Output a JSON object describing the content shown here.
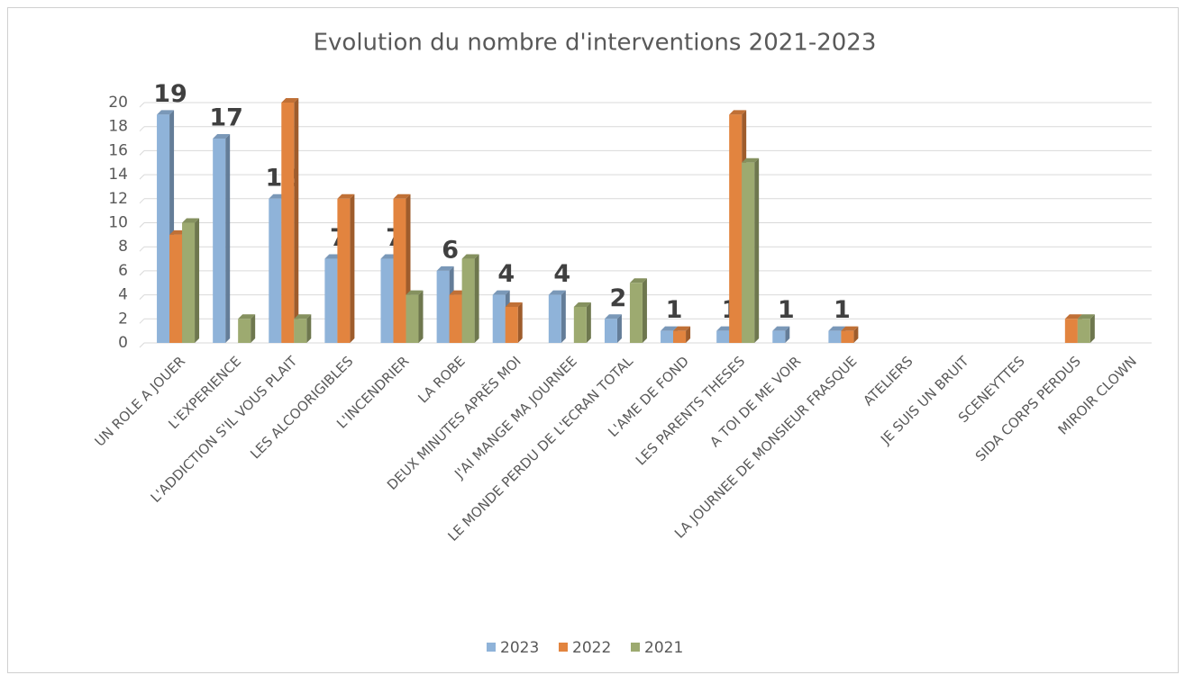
{
  "chart_data": {
    "type": "bar",
    "title": "Evolution du nombre d'interventions 2021-2023",
    "categories": [
      "UN ROLE A JOUER",
      "L'EXPERIENCE",
      "L'ADDICTION S'IL VOUS PLAIT",
      "LES ALCOORIGIBLES",
      "L'INCENDRIER",
      "LA ROBE",
      "DEUX MINUTES APRÈS MOI",
      "J'AI MANGE MA JOURNEE",
      "LE MONDE PERDU DE L'ECRAN TOTAL",
      "L'AME DE FOND",
      "LES PARENTS THESES",
      "A TOI DE ME VOIR",
      "LA JOURNEE DE MONSIEUR FRASQUE",
      "ATELIERS",
      "JE SUIS UN BRUIT",
      "SCENEYTTES",
      "SIDA CORPS PERDUS",
      "MIROIR CLOWN"
    ],
    "series": [
      {
        "name": "2023",
        "color": "#8fb3d9",
        "values": [
          19,
          17,
          12,
          7,
          7,
          6,
          4,
          4,
          2,
          1,
          1,
          1,
          1,
          null,
          null,
          null,
          null,
          null
        ],
        "data_labels": true
      },
      {
        "name": "2022",
        "color": "#e2843f",
        "values": [
          9,
          null,
          20,
          12,
          12,
          4,
          3,
          null,
          null,
          1,
          19,
          null,
          1,
          null,
          null,
          null,
          2,
          null
        ]
      },
      {
        "name": "2021",
        "color": "#9daa70",
        "values": [
          10,
          2,
          2,
          null,
          4,
          7,
          null,
          3,
          5,
          null,
          15,
          null,
          null,
          null,
          null,
          null,
          2,
          null
        ]
      }
    ],
    "ylim": [
      0,
      20
    ],
    "yticks": [
      0,
      2,
      4,
      6,
      8,
      10,
      12,
      14,
      16,
      18,
      20
    ],
    "grid": true,
    "legend": "bottom"
  }
}
